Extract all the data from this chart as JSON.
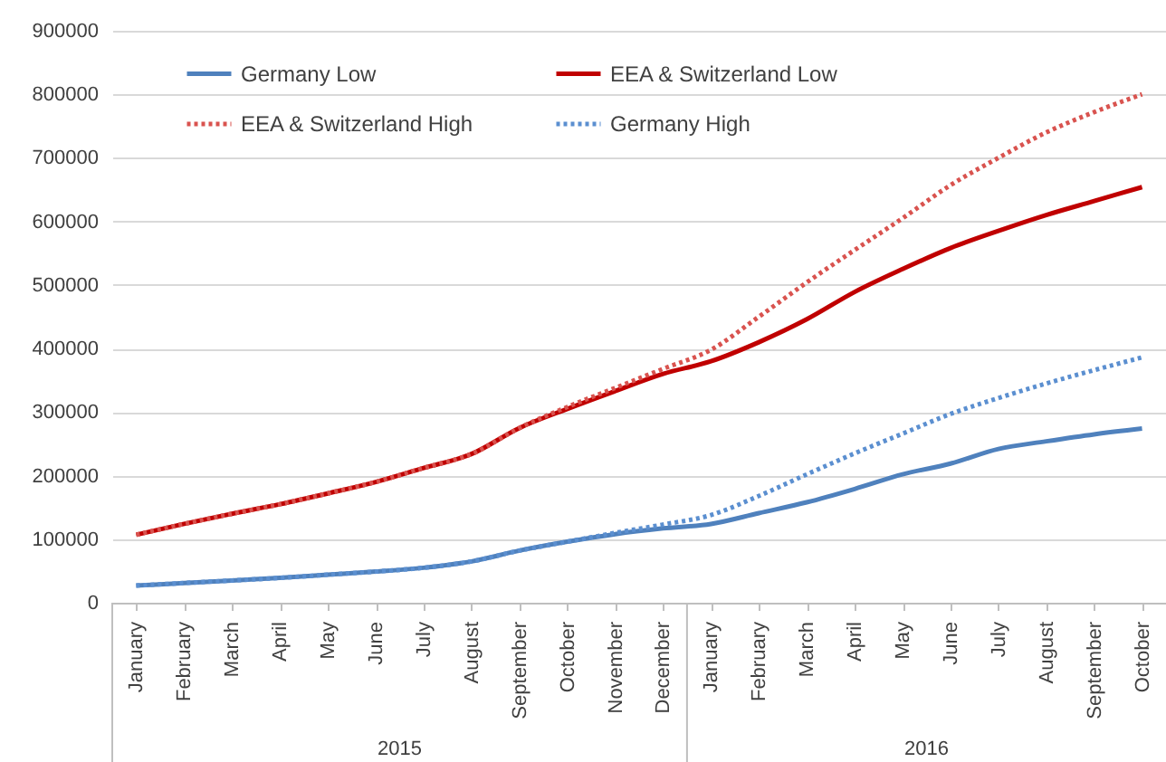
{
  "chart_data": {
    "type": "line",
    "categories": [
      "January",
      "February",
      "March",
      "April",
      "May",
      "June",
      "July",
      "August",
      "September",
      "October",
      "November",
      "December",
      "January",
      "February",
      "March",
      "April",
      "May",
      "June",
      "July",
      "August",
      "September",
      "October"
    ],
    "series": [
      {
        "name": "Germany Low",
        "color": "#4f81bd",
        "line_style": "solid",
        "values": [
          27000,
          31000,
          35000,
          39000,
          44000,
          49000,
          55000,
          65000,
          82000,
          96000,
          108000,
          117000,
          124000,
          141000,
          158000,
          179000,
          202000,
          219000,
          242000,
          254000,
          265000,
          274000
        ]
      },
      {
        "name": "EEA & Switzerland Low",
        "color": "#c00000",
        "line_style": "solid",
        "values": [
          107000,
          124000,
          140000,
          155000,
          172000,
          190000,
          212000,
          234000,
          275000,
          305000,
          333000,
          360000,
          380000,
          410000,
          446000,
          489000,
          525000,
          558000,
          585000,
          610000,
          632000,
          654000
        ]
      },
      {
        "name": "EEA & Switzerland High",
        "color": "#d9534f",
        "line_style": "dotted",
        "values": [
          107000,
          124000,
          140000,
          155000,
          172000,
          190000,
          212000,
          234000,
          275000,
          308000,
          338000,
          368000,
          398000,
          450000,
          504000,
          555000,
          605000,
          657000,
          700000,
          740000,
          772000,
          800000
        ]
      },
      {
        "name": "Germany High",
        "color": "#5b8fd0",
        "line_style": "dotted",
        "values": [
          27000,
          31000,
          35000,
          39000,
          44000,
          49000,
          55000,
          65000,
          82000,
          96000,
          110000,
          123000,
          138000,
          168000,
          202000,
          235000,
          266000,
          297000,
          322000,
          345000,
          366000,
          386000
        ]
      }
    ],
    "ylim": [
      0,
      900000
    ],
    "yticks": [
      0,
      100000,
      200000,
      300000,
      400000,
      500000,
      600000,
      700000,
      800000,
      900000
    ],
    "grid": "y",
    "legend": "top",
    "marker": "none",
    "annotations": [
      "2015",
      "2016"
    ]
  }
}
